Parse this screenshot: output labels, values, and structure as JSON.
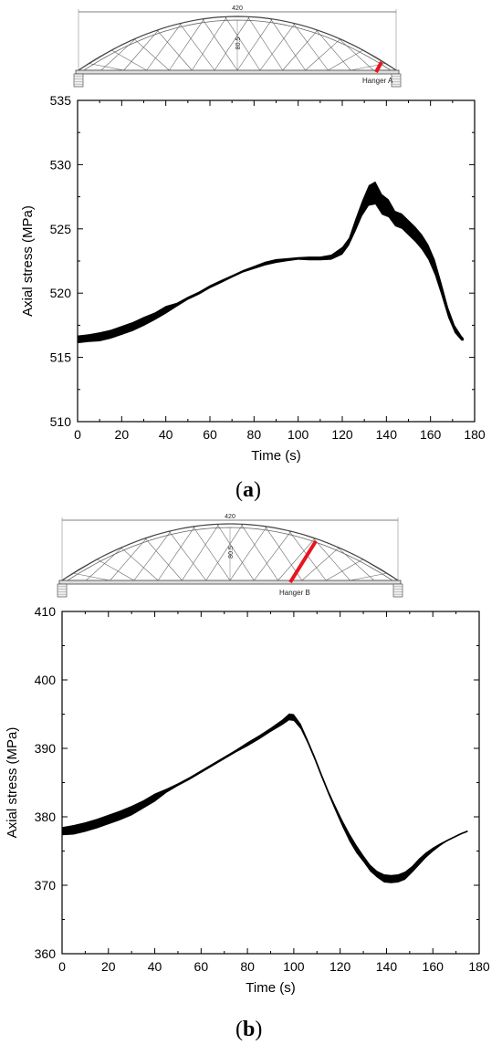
{
  "panels": [
    {
      "label_open": "(",
      "label_letter": "a",
      "label_close": ")",
      "bridge": {
        "span_label": "420",
        "rise_label": "80.5",
        "hanger_label": "Hanger A"
      },
      "accent_color": "#e8141e",
      "chart_data": {
        "type": "line",
        "xlabel": "Time (s)",
        "ylabel": "Axial stress (MPa)",
        "xlim": [
          0,
          180
        ],
        "ylim": [
          510,
          535
        ],
        "xticks": [
          0,
          20,
          40,
          60,
          80,
          100,
          120,
          140,
          160,
          180
        ],
        "yticks": [
          510,
          515,
          520,
          525,
          530,
          535
        ],
        "series": [
          {
            "x": [
              0,
              5,
              10,
              15,
              20,
              25,
              30,
              35,
              40,
              45,
              50,
              55,
              60,
              65,
              70,
              75,
              80,
              85,
              90,
              95,
              100,
              105,
              110,
              115,
              120,
              123,
              126,
              129,
              132,
              135,
              138,
              141,
              144,
              147,
              150,
              153,
              156,
              159,
              162,
              165,
              168,
              171,
              174,
              175
            ],
            "y": [
              516.4,
              516.5,
              516.6,
              516.8,
              517.1,
              517.4,
              517.8,
              518.2,
              518.7,
              519.1,
              519.6,
              520.0,
              520.5,
              520.9,
              521.3,
              521.7,
              522.0,
              522.3,
              522.5,
              522.6,
              522.7,
              522.7,
              522.7,
              522.8,
              523.3,
              524.0,
              525.3,
              526.6,
              527.6,
              527.8,
              526.9,
              526.6,
              525.8,
              525.6,
              525.1,
              524.6,
              524.0,
              523.2,
              522.0,
              520.3,
              518.5,
              517.2,
              516.5,
              516.4
            ],
            "band": [
              0.3,
              0.3,
              0.35,
              0.35,
              0.35,
              0.35,
              0.35,
              0.3,
              0.3,
              0.15,
              0.12,
              0.12,
              0.12,
              0.12,
              0.1,
              0.1,
              0.12,
              0.15,
              0.15,
              0.12,
              0.1,
              0.15,
              0.15,
              0.2,
              0.3,
              0.3,
              0.5,
              0.6,
              0.8,
              0.9,
              0.8,
              0.7,
              0.6,
              0.6,
              0.6,
              0.6,
              0.6,
              0.6,
              0.6,
              0.5,
              0.4,
              0.3,
              0.2,
              0.1
            ]
          }
        ]
      }
    },
    {
      "label_open": "(",
      "label_letter": "b",
      "label_close": ")",
      "bridge": {
        "span_label": "420",
        "rise_label": "80.5",
        "hanger_label": "Hanger B"
      },
      "accent_color": "#e8141e",
      "chart_data": {
        "type": "line",
        "xlabel": "Time (s)",
        "ylabel": "Axial stress (MPa)",
        "xlim": [
          0,
          180
        ],
        "ylim": [
          360,
          410
        ],
        "xticks": [
          0,
          20,
          40,
          60,
          80,
          100,
          120,
          140,
          160,
          180
        ],
        "yticks": [
          360,
          370,
          380,
          390,
          400,
          410
        ],
        "series": [
          {
            "x": [
              0,
              5,
              10,
              15,
              20,
              25,
              30,
              35,
              40,
              45,
              50,
              55,
              60,
              65,
              70,
              75,
              80,
              85,
              90,
              95,
              98,
              100,
              103,
              106,
              109,
              112,
              115,
              118,
              121,
              124,
              127,
              130,
              133,
              136,
              139,
              142,
              145,
              148,
              151,
              154,
              157,
              160,
              163,
              166,
              169,
              172,
              175
            ],
            "y": [
              377.9,
              378.1,
              378.5,
              379.0,
              379.6,
              380.2,
              380.9,
              381.8,
              382.8,
              383.8,
              384.7,
              385.6,
              386.6,
              387.6,
              388.6,
              389.6,
              390.6,
              391.6,
              392.7,
              393.8,
              394.6,
              394.5,
              393.2,
              391.0,
              388.6,
              386.0,
              383.5,
              381.2,
              379.0,
              377.0,
              375.3,
              373.9,
              372.5,
              371.6,
              371.0,
              370.9,
              371.0,
              371.4,
              372.3,
              373.4,
              374.4,
              375.2,
              375.9,
              376.5,
              377.0,
              377.5,
              377.9
            ],
            "band": [
              0.6,
              0.7,
              0.7,
              0.7,
              0.7,
              0.7,
              0.7,
              0.6,
              0.6,
              0.3,
              0.2,
              0.2,
              0.2,
              0.2,
              0.2,
              0.2,
              0.3,
              0.3,
              0.3,
              0.4,
              0.5,
              0.5,
              0.4,
              0.3,
              0.3,
              0.3,
              0.3,
              0.4,
              0.5,
              0.6,
              0.6,
              0.5,
              0.5,
              0.5,
              0.6,
              0.6,
              0.6,
              0.6,
              0.5,
              0.5,
              0.4,
              0.3,
              0.2,
              0.1,
              0.1,
              0.1,
              0.1
            ]
          }
        ]
      }
    }
  ]
}
